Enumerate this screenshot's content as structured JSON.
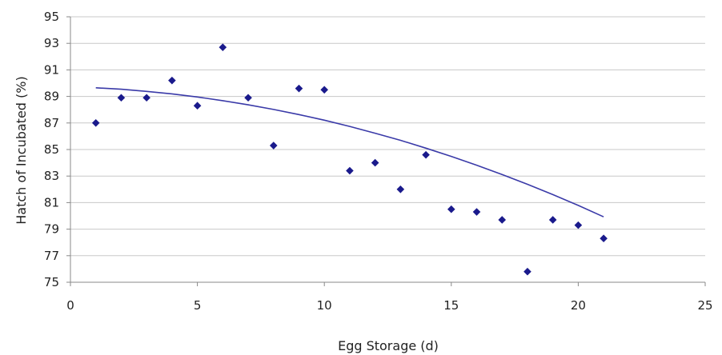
{
  "chart_data": {
    "type": "scatter",
    "title": "",
    "xlabel": "Egg Storage (d)",
    "ylabel": "Hatch of Incubated (%)",
    "xlim": [
      0,
      25
    ],
    "ylim": [
      75,
      95
    ],
    "x_ticks": [
      0,
      5,
      10,
      15,
      20,
      25
    ],
    "y_ticks": [
      75,
      77,
      79,
      81,
      83,
      85,
      87,
      89,
      91,
      93,
      95
    ],
    "grid": "horizontal",
    "legend": "none",
    "marker": "diamond",
    "colors": {
      "points": "#1a1a8c",
      "trendline": "#3a3aa8",
      "grid": "#c8c8c8",
      "axis": "#888888"
    },
    "series": [
      {
        "x": [
          1,
          2,
          3,
          4,
          5,
          6,
          7,
          8,
          9,
          10,
          11,
          12,
          13,
          14,
          15,
          16,
          17,
          18,
          19,
          20,
          21
        ],
        "values": [
          87.0,
          88.9,
          88.9,
          90.2,
          88.3,
          92.7,
          88.9,
          85.3,
          89.6,
          89.5,
          83.4,
          84.0,
          82.0,
          84.6,
          80.5,
          80.3,
          79.7,
          75.8,
          79.7,
          79.3,
          78.3
        ]
      }
    ],
    "trendline": {
      "type": "polynomial",
      "x": [
        1,
        2,
        3,
        4,
        5,
        6,
        7,
        8,
        9,
        10,
        11,
        12,
        13,
        14,
        15,
        16,
        17,
        18,
        19,
        20,
        21
      ],
      "values": [
        89.65,
        89.54,
        89.38,
        89.19,
        88.96,
        88.68,
        88.37,
        88.02,
        87.63,
        87.21,
        86.74,
        86.23,
        85.69,
        85.1,
        84.48,
        83.82,
        83.12,
        82.38,
        81.6,
        80.79,
        79.93
      ]
    }
  }
}
